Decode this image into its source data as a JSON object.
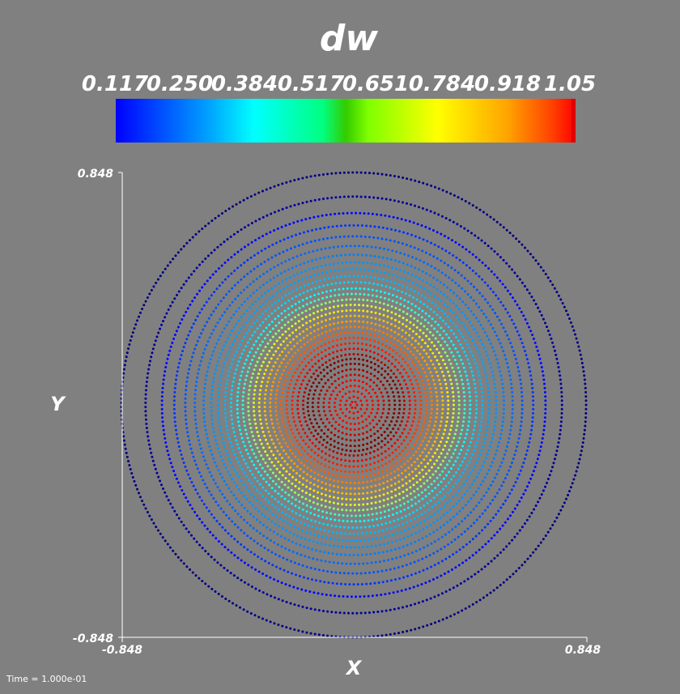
{
  "chart_data": {
    "type": "scatter",
    "title": "dw",
    "xlabel": "X",
    "ylabel": "Y",
    "xlim": [
      -0.848,
      0.848
    ],
    "ylim": [
      -0.848,
      0.848
    ],
    "x_tick_labels": [
      "-0.848",
      "0.848"
    ],
    "y_tick_labels": [
      "-0.848",
      "0.848"
    ],
    "grid": false,
    "legend": "colorbar-top",
    "colorbar": {
      "label": "dw",
      "range": [
        0.117,
        1.05
      ],
      "ticks": [
        "0.117",
        "0.250",
        "0.384",
        "0.517",
        "0.651",
        "0.784",
        "0.918",
        "1.05"
      ],
      "colormap": "jet"
    },
    "rings": [
      {
        "radius": 0.848,
        "dw": 0.117
      },
      {
        "radius": 0.76,
        "dw": 0.14
      },
      {
        "radius": 0.7,
        "dw": 0.24
      },
      {
        "radius": 0.655,
        "dw": 0.28
      },
      {
        "radius": 0.615,
        "dw": 0.31
      },
      {
        "radius": 0.58,
        "dw": 0.33
      },
      {
        "radius": 0.548,
        "dw": 0.35
      },
      {
        "radius": 0.52,
        "dw": 0.37
      },
      {
        "radius": 0.495,
        "dw": 0.38
      },
      {
        "radius": 0.47,
        "dw": 0.4
      },
      {
        "radius": 0.448,
        "dw": 0.43
      },
      {
        "radius": 0.425,
        "dw": 0.47
      },
      {
        "radius": 0.405,
        "dw": 0.52
      },
      {
        "radius": 0.385,
        "dw": 0.6
      },
      {
        "radius": 0.365,
        "dw": 0.67
      },
      {
        "radius": 0.345,
        "dw": 0.72
      },
      {
        "radius": 0.325,
        "dw": 0.76
      },
      {
        "radius": 0.305,
        "dw": 0.79
      },
      {
        "radius": 0.285,
        "dw": 0.82
      },
      {
        "radius": 0.265,
        "dw": 0.85
      },
      {
        "radius": 0.245,
        "dw": 0.88
      },
      {
        "radius": 0.225,
        "dw": 0.91
      },
      {
        "radius": 0.205,
        "dw": 0.95
      },
      {
        "radius": 0.185,
        "dw": 1.0
      },
      {
        "radius": 0.168,
        "dw": 1.05
      },
      {
        "radius": 0.15,
        "dw": 1.05
      },
      {
        "radius": 0.13,
        "dw": 1.02
      },
      {
        "radius": 0.11,
        "dw": 0.98
      },
      {
        "radius": 0.09,
        "dw": 0.95
      },
      {
        "radius": 0.07,
        "dw": 0.93
      },
      {
        "radius": 0.05,
        "dw": 0.93
      },
      {
        "radius": 0.03,
        "dw": 0.94
      },
      {
        "radius": 0.012,
        "dw": 0.95
      }
    ]
  },
  "footer": {
    "time_label": "Time = 1.000e-01"
  }
}
